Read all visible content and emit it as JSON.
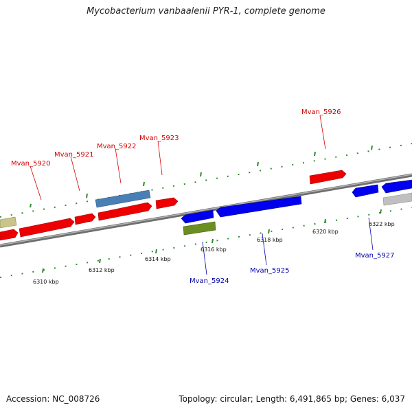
{
  "title": "Mycobacterium vanbaalenii PYR-1, complete genome",
  "footer": {
    "accession": "Accession: NC_008726",
    "stats": "Topology: circular; Length: 6,491,865 bp; Genes: 6,037"
  },
  "colors": {
    "forward_gene": "#ff0000",
    "reverse_gene": "#0000ff",
    "forward_label": "#d40000",
    "reverse_label": "#0000aa",
    "backbone": "#888888",
    "tick": "#2e8b2e"
  },
  "ticks": [
    "6310 kbp",
    "6312 kbp",
    "6314 kbp",
    "6316 kbp",
    "6318 kbp",
    "6320 kbp",
    "6322 kbp"
  ],
  "gene_labels": {
    "forward": [
      "Mvan_5920",
      "Mvan_5921",
      "Mvan_5922",
      "Mvan_5923",
      "Mvan_5926"
    ],
    "reverse": [
      "Mvan_5924",
      "Mvan_5925",
      "Mvan_5927"
    ]
  },
  "features": [
    {
      "strand": "forward",
      "color": "red"
    },
    {
      "strand": "forward",
      "color": "red"
    },
    {
      "strand": "forward",
      "color": "red"
    },
    {
      "strand": "forward",
      "color": "red"
    },
    {
      "strand": "forward",
      "color": "red"
    },
    {
      "strand": "forward",
      "color": "steel-blue"
    },
    {
      "strand": "forward",
      "color": "khaki"
    },
    {
      "strand": "reverse",
      "color": "blue"
    },
    {
      "strand": "reverse",
      "color": "blue"
    },
    {
      "strand": "reverse",
      "color": "blue"
    },
    {
      "strand": "reverse",
      "color": "blue"
    },
    {
      "strand": "reverse",
      "color": "olive-green"
    },
    {
      "strand": "reverse",
      "color": "gray"
    }
  ]
}
